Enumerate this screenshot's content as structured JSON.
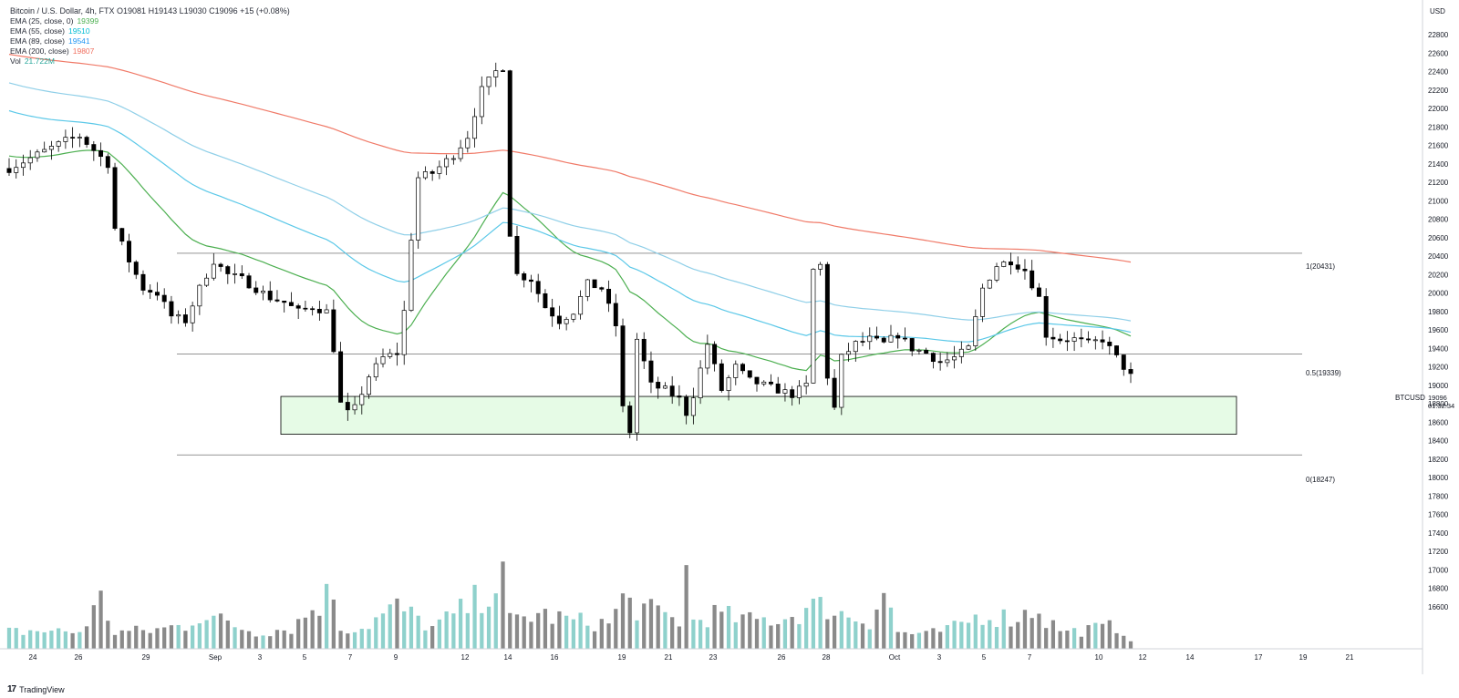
{
  "header": {
    "symbol_line": "Bitcoin / U.S. Dollar, 4h, FTX  O19081  H19143  L19030  C19096  +15 (+0.08%)"
  },
  "indicators": [
    {
      "label": "EMA (25, close, 0)",
      "value": "19399",
      "color": "#4caf50"
    },
    {
      "label": "EMA (55, close)",
      "value": "19510",
      "color": "#00bcd4"
    },
    {
      "label": "EMA (89, close)",
      "value": "19541",
      "color": "#5b9bd5"
    },
    {
      "label": "EMA (200, close)",
      "value": "19807",
      "color": "#f07060"
    },
    {
      "label": "Vol",
      "value": "21.722M",
      "color": "#26a69a"
    }
  ],
  "axis": {
    "currency": "USD",
    "price_ticks": [
      "22800",
      "22600",
      "22400",
      "22200",
      "22000",
      "21800",
      "21600",
      "21400",
      "21200",
      "21000",
      "20800",
      "20600",
      "20400",
      "20200",
      "20000",
      "19800",
      "19600",
      "19400",
      "19200",
      "19000",
      "18800",
      "18600",
      "18400",
      "18200",
      "18000",
      "17800",
      "17600",
      "17400",
      "17200",
      "17000",
      "16800",
      "16600"
    ],
    "date_ticks": [
      "24",
      "26",
      "29",
      "Sep",
      "3",
      "5",
      "7",
      "9",
      "12",
      "14",
      "16",
      "19",
      "21",
      "23",
      "26",
      "28",
      "Oct",
      "3",
      "5",
      "7",
      "10",
      "12",
      "14",
      "17",
      "19",
      "21"
    ]
  },
  "current_price": {
    "ticker": "BTCUSD",
    "price": "19096",
    "countdown": "01:32:34"
  },
  "fib_levels": [
    {
      "label": "1(20431)",
      "price": 20431
    },
    {
      "label": "0.5(19339)",
      "price": 19339
    },
    {
      "label": "0(18247)",
      "price": 18247
    }
  ],
  "support_zone": {
    "top": 18880,
    "bottom": 18470,
    "fill": "#e6fbe6"
  },
  "colors": {
    "up": "#ffffff",
    "down": "#000000",
    "vol_up": "#8fd1cc",
    "vol_down": "#8a8a8a",
    "ema25": "#4caf50",
    "ema55": "#5bc8e8",
    "ema89": "#8fcfe8",
    "ema200": "#f07a68"
  },
  "brand": "TradingView",
  "chart_data": {
    "type": "candlestick",
    "title": "Bitcoin / U.S. Dollar, 4h, FTX",
    "ylim": [
      16500,
      22900
    ],
    "x_label_positions": [
      "24",
      "26",
      "29",
      "Sep",
      "3",
      "5",
      "7",
      "9",
      "12",
      "14",
      "16",
      "19",
      "21",
      "23",
      "26",
      "28",
      "Oct",
      "3",
      "5",
      "7",
      "10",
      "12",
      "14",
      "17",
      "19",
      "21"
    ],
    "price_path": [
      [
        0,
        21350
      ],
      [
        4,
        21500
      ],
      [
        8,
        21650
      ],
      [
        10,
        21700
      ],
      [
        12,
        21550
      ],
      [
        14,
        21400
      ],
      [
        15,
        20700
      ],
      [
        17,
        20350
      ],
      [
        19,
        20050
      ],
      [
        21,
        20000
      ],
      [
        23,
        19750
      ],
      [
        25,
        19700
      ],
      [
        27,
        20050
      ],
      [
        29,
        20350
      ],
      [
        31,
        20200
      ],
      [
        33,
        20150
      ],
      [
        35,
        20050
      ],
      [
        37,
        19950
      ],
      [
        39,
        19900
      ],
      [
        41,
        19800
      ],
      [
        43,
        19850
      ],
      [
        45,
        19800
      ],
      [
        46,
        19400
      ],
      [
        47,
        18800
      ],
      [
        48,
        18700
      ],
      [
        49,
        18750
      ],
      [
        51,
        19100
      ],
      [
        53,
        19300
      ],
      [
        55,
        19350
      ],
      [
        56,
        19800
      ],
      [
        57,
        20600
      ],
      [
        58,
        21250
      ],
      [
        60,
        21300
      ],
      [
        63,
        21500
      ],
      [
        65,
        21700
      ],
      [
        67,
        22200
      ],
      [
        69,
        22400
      ],
      [
        70,
        22450
      ],
      [
        71,
        20650
      ],
      [
        72,
        20200
      ],
      [
        74,
        20150
      ],
      [
        76,
        19850
      ],
      [
        78,
        19700
      ],
      [
        80,
        19800
      ],
      [
        82,
        20100
      ],
      [
        84,
        20050
      ],
      [
        86,
        19650
      ],
      [
        87,
        18750
      ],
      [
        88,
        18500
      ],
      [
        89,
        19500
      ],
      [
        91,
        19000
      ],
      [
        93,
        18950
      ],
      [
        95,
        18850
      ],
      [
        96,
        18700
      ],
      [
        97,
        18900
      ],
      [
        99,
        19450
      ],
      [
        101,
        18950
      ],
      [
        103,
        19200
      ],
      [
        105,
        19050
      ],
      [
        107,
        19000
      ],
      [
        109,
        18950
      ],
      [
        111,
        18900
      ],
      [
        113,
        19000
      ],
      [
        114,
        20250
      ],
      [
        115,
        20300
      ],
      [
        116,
        19100
      ],
      [
        117,
        18750
      ],
      [
        118,
        19300
      ],
      [
        120,
        19450
      ],
      [
        122,
        19500
      ],
      [
        124,
        19450
      ],
      [
        126,
        19550
      ],
      [
        128,
        19400
      ],
      [
        130,
        19350
      ],
      [
        132,
        19250
      ],
      [
        134,
        19300
      ],
      [
        136,
        19400
      ],
      [
        138,
        20050
      ],
      [
        140,
        20300
      ],
      [
        142,
        20350
      ],
      [
        144,
        20250
      ],
      [
        146,
        19950
      ],
      [
        147,
        19550
      ],
      [
        149,
        19500
      ],
      [
        151,
        19500
      ],
      [
        153,
        19450
      ],
      [
        155,
        19500
      ],
      [
        157,
        19300
      ],
      [
        159,
        19100
      ]
    ],
    "volume_profile": [
      [
        0,
        0.12
      ],
      [
        4,
        0.13
      ],
      [
        10,
        0.12
      ],
      [
        13,
        0.35
      ],
      [
        15,
        0.12
      ],
      [
        20,
        0.13
      ],
      [
        25,
        0.17
      ],
      [
        27,
        0.25
      ],
      [
        30,
        0.2
      ],
      [
        35,
        0.12
      ],
      [
        40,
        0.15
      ],
      [
        46,
        0.42
      ],
      [
        47,
        0.15
      ],
      [
        50,
        0.15
      ],
      [
        55,
        0.3
      ],
      [
        60,
        0.15
      ],
      [
        65,
        0.3
      ],
      [
        70,
        0.5
      ],
      [
        71,
        0.2
      ],
      [
        75,
        0.25
      ],
      [
        80,
        0.2
      ],
      [
        85,
        0.18
      ],
      [
        87,
        0.35
      ],
      [
        89,
        0.3
      ],
      [
        95,
        0.2
      ],
      [
        96,
        0.55
      ],
      [
        97,
        0.2
      ],
      [
        100,
        0.25
      ],
      [
        105,
        0.2
      ],
      [
        110,
        0.22
      ],
      [
        114,
        0.3
      ],
      [
        116,
        0.3
      ],
      [
        118,
        0.25
      ],
      [
        122,
        0.2
      ],
      [
        124,
        0.42
      ],
      [
        126,
        0.12
      ],
      [
        130,
        0.1
      ],
      [
        134,
        0.15
      ],
      [
        138,
        0.25
      ],
      [
        142,
        0.22
      ],
      [
        144,
        0.25
      ],
      [
        146,
        0.3
      ],
      [
        147,
        0.2
      ],
      [
        150,
        0.12
      ],
      [
        155,
        0.15
      ],
      [
        157,
        0.16
      ],
      [
        159,
        0.08
      ]
    ]
  }
}
